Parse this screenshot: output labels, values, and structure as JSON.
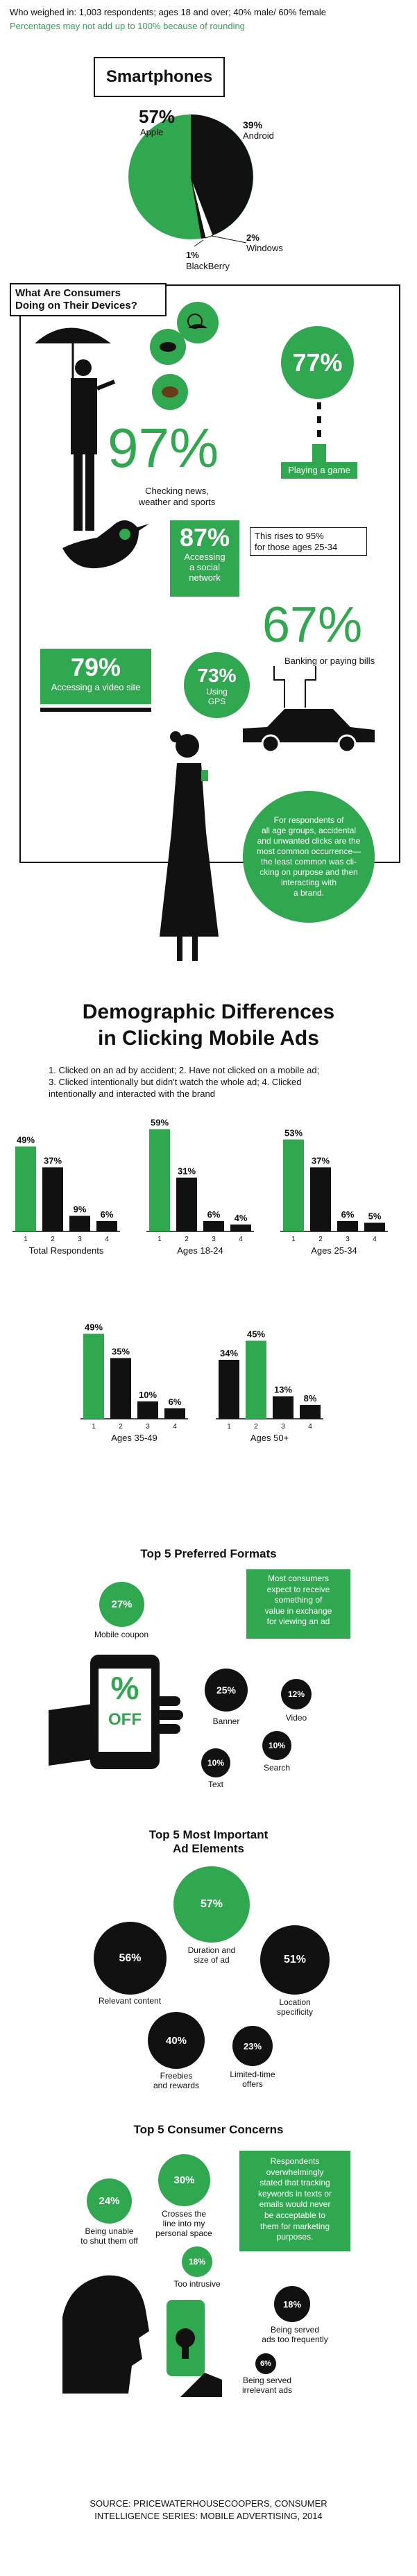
{
  "header": {
    "line1": "Who weighed in: 1,003 respondents; ages 18 and over; 40% male/ 60% female",
    "line2": "Percentages may not add up to 100% because of rounding"
  },
  "smartphones": {
    "title": "Smartphones",
    "apple_pct": "57%",
    "apple_label": "Apple",
    "android_pct": "39%",
    "android_label": "Android",
    "windows_pct": "2%",
    "windows_label": "Windows",
    "blackberry_pct": "1%",
    "blackberry_label": "BlackBerry"
  },
  "devices": {
    "title_line1": "What Are Consumers",
    "title_line2": "Doing on Their Devices?",
    "game_pct": "77%",
    "game_label": "Playing a game",
    "news_pct": "97%",
    "news_label_1": "Checking news,",
    "news_label_2": "weather and sports",
    "social_pct": "87%",
    "social_label_1": "Accessing",
    "social_label_2": "a social",
    "social_label_3": "network",
    "social_note_1": "This rises to 95%",
    "social_note_2": "for those ages 25-34",
    "banking_pct": "67%",
    "banking_label": "Banking or paying bills",
    "video_pct": "79%",
    "video_label": "Accessing a video site",
    "gps_pct": "73%",
    "gps_label_1": "Using",
    "gps_label_2": "GPS",
    "callout_1": "For respondents of",
    "callout_2": "all age groups, accidental",
    "callout_3": "and unwanted clicks are the",
    "callout_4": "most common occurrence—",
    "callout_5": "the least common was cli-",
    "callout_6": "cking on purpose and then",
    "callout_7": "interacting with",
    "callout_8": "a brand."
  },
  "demographic": {
    "title_line1": "Demographic Differences",
    "title_line2": "in Clicking Mobile Ads",
    "legend_1": "1. Clicked on an ad by accident; 2. Have not clicked on a mobile ad;",
    "legend_2": "3. Clicked intentionally but didn't watch the whole ad; 4. Clicked",
    "legend_3": "intentionally and interacted with the brand"
  },
  "chart_data": {
    "type": "bar",
    "categories": [
      "1",
      "2",
      "3",
      "4"
    ],
    "groups": [
      {
        "name": "Total Respondents",
        "values": [
          49,
          37,
          9,
          6
        ],
        "highlight": 0
      },
      {
        "name": "Ages 18-24",
        "values": [
          59,
          31,
          6,
          4
        ],
        "highlight": 0
      },
      {
        "name": "Ages 25-34",
        "values": [
          53,
          37,
          6,
          5
        ],
        "highlight": 0
      },
      {
        "name": "Ages 35-49",
        "values": [
          49,
          35,
          10,
          6
        ],
        "highlight": 0
      },
      {
        "name": "Ages 50+",
        "values": [
          34,
          45,
          13,
          8
        ],
        "highlight": 1
      }
    ],
    "ylim": [
      0,
      60
    ],
    "value_suffix": "%",
    "colors": {
      "highlight": "#2fa84f",
      "other": "#111111"
    }
  },
  "formats": {
    "title": "Top 5 Preferred Formats",
    "coupon_pct": "27%",
    "coupon_label": "Mobile coupon",
    "note_1": "Most consumers",
    "note_2": "expect to receive",
    "note_3": "something of",
    "note_4": "value in exchange",
    "note_5": "for viewing an ad",
    "phone_pct": "%",
    "phone_off": "OFF",
    "banner_pct": "25%",
    "banner_label": "Banner",
    "video_pct": "12%",
    "video_label": "Video",
    "search_pct": "10%",
    "search_label": "Search",
    "text_pct": "10%",
    "text_label": "Text"
  },
  "elements": {
    "title_line1": "Top 5 Most Important",
    "title_line2": "Ad Elements",
    "duration_pct": "57%",
    "duration_label_1": "Duration and",
    "duration_label_2": "size of ad",
    "relevant_pct": "56%",
    "relevant_label": "Relevant content",
    "location_pct": "51%",
    "location_label_1": "Location",
    "location_label_2": "specificity",
    "freebies_pct": "40%",
    "freebies_label_1": "Freebies",
    "freebies_label_2": "and rewards",
    "limited_pct": "23%",
    "limited_label_1": "Limited-time",
    "limited_label_2": "offers"
  },
  "concerns": {
    "title": "Top 5 Consumer Concerns",
    "crosses_pct": "30%",
    "crosses_label_1": "Crosses the",
    "crosses_label_2": "line into my",
    "crosses_label_3": "personal space",
    "unable_pct": "24%",
    "unable_label_1": "Being unable",
    "unable_label_2": "to shut them off",
    "note_1": "Respondents",
    "note_2": "overwhelmingly",
    "note_3": "stated that tracking",
    "note_4": "keywords in texts or",
    "note_5": "emails would never",
    "note_6": "be acceptable to",
    "note_7": "them for marketing",
    "note_8": "purposes.",
    "intrusive_pct": "18%",
    "intrusive_label": "Too intrusive",
    "frequent_pct": "18%",
    "frequent_label_1": "Being served",
    "frequent_label_2": "ads too frequently",
    "irrelevant_pct": "6%",
    "irrelevant_label_1": "Being served",
    "irrelevant_label_2": "irrelevant ads"
  },
  "source": {
    "line1": "SOURCE: PRICEWATERHOUSECOOPERS, CONSUMER",
    "line2": "INTELLIGENCE SERIES: MOBILE ADVERTISING, 2014"
  },
  "colors": {
    "accent": "#2fa84f",
    "ink": "#111111"
  }
}
